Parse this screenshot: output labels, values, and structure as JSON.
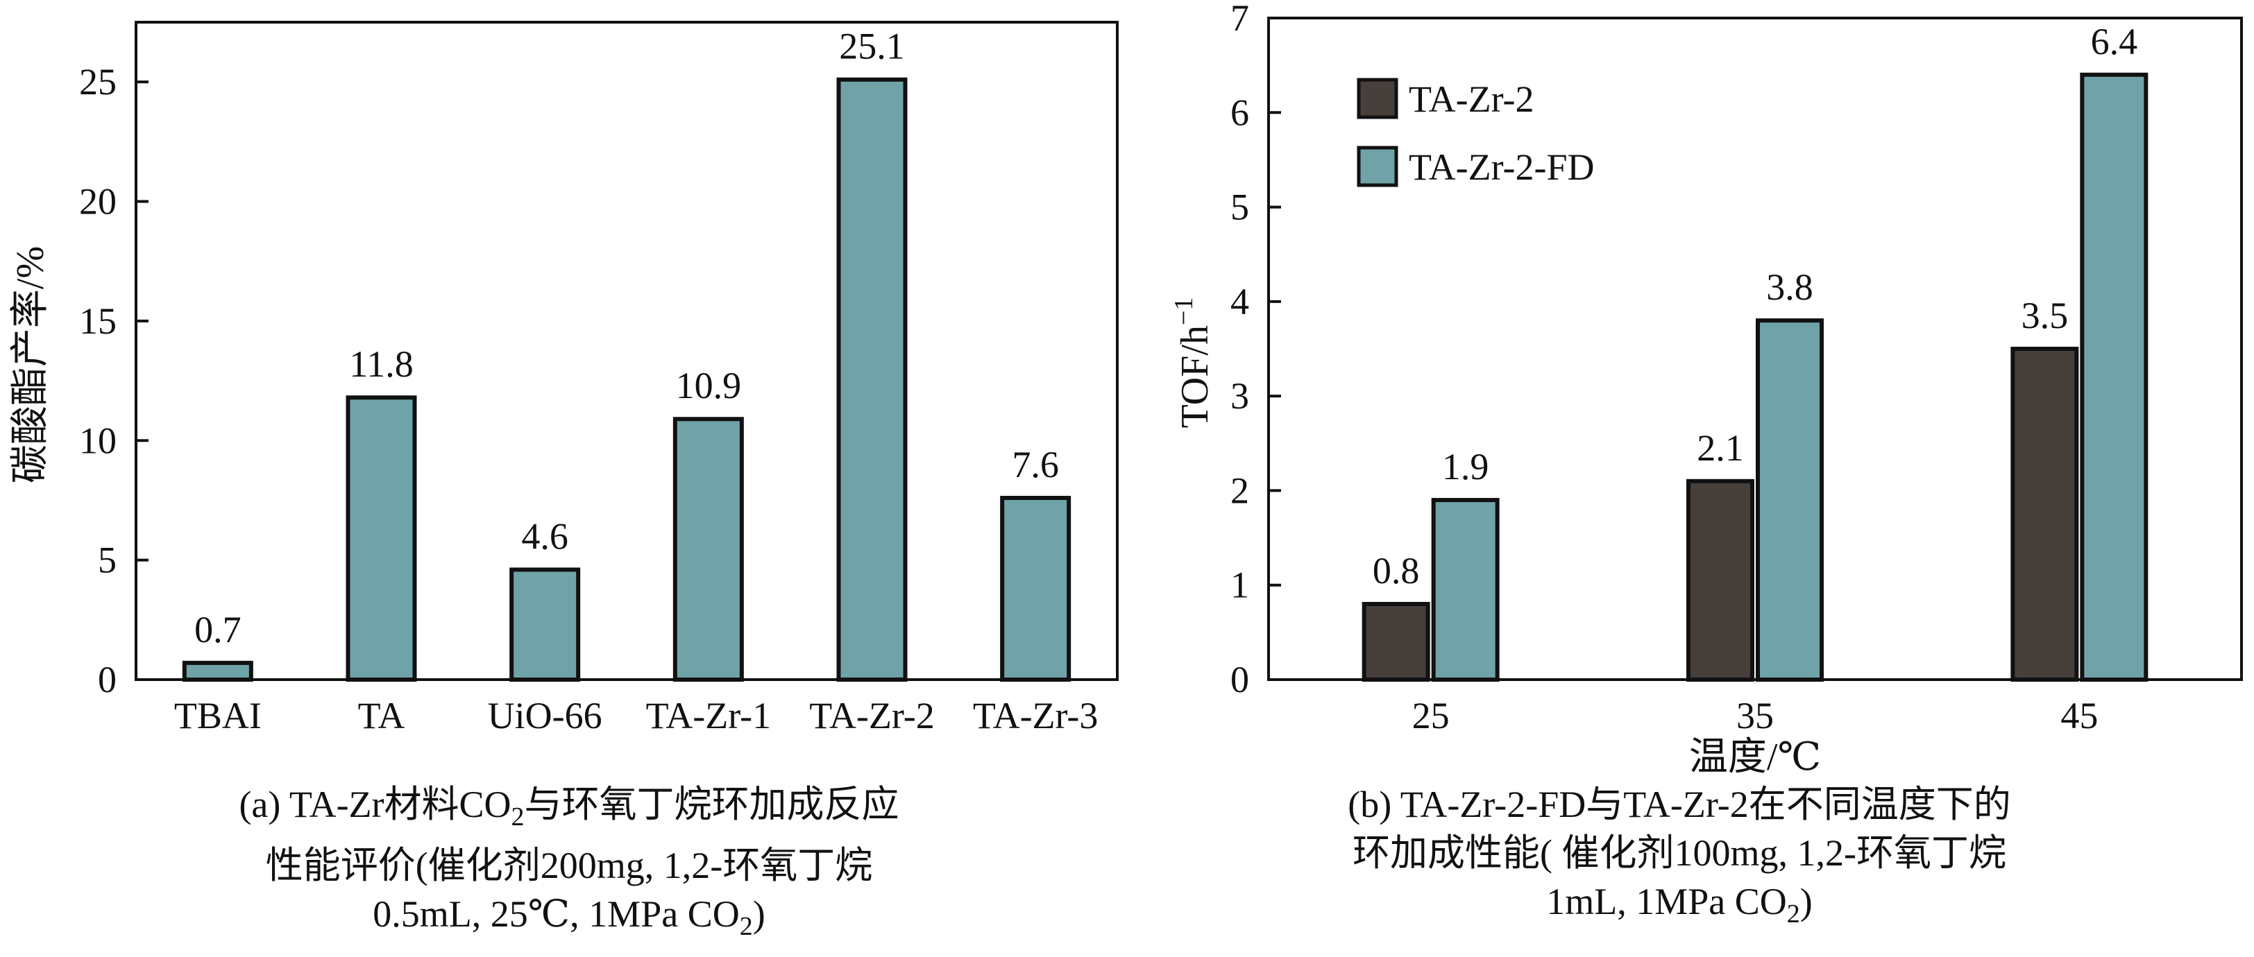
{
  "chart_data": [
    {
      "type": "bar",
      "categories": [
        "TBAI",
        "TA",
        "UiO-66",
        "TA-Zr-1",
        "TA-Zr-2",
        "TA-Zr-3"
      ],
      "values": [
        0.7,
        11.8,
        4.6,
        10.9,
        25.1,
        7.6
      ],
      "data_labels": [
        "0.7",
        "11.8",
        "4.6",
        "10.9",
        "25.1",
        "7.6"
      ],
      "ylabel": "碳酸酯产率/%",
      "xlabel": "",
      "ylim": [
        0,
        27.5
      ],
      "yticks": [
        "0",
        "5",
        "10",
        "15",
        "20",
        "25"
      ],
      "bar_color": "#70a3a8",
      "caption": {
        "line1_pre": "(a) TA-Zr材料CO",
        "line1_sub": "2",
        "line1_post": "与环氧丁烷环加成反应",
        "line2": "性能评价(催化剂200mg, 1,2-环氧丁烷",
        "line3_pre": "0.5mL, 25℃, 1MPa CO",
        "line3_sub": "2",
        "line3_post": ")"
      }
    },
    {
      "type": "bar",
      "categories": [
        "25",
        "35",
        "45"
      ],
      "series": [
        {
          "name": "TA-Zr-2",
          "values": [
            0.8,
            2.1,
            3.5
          ],
          "data_labels": [
            "0.8",
            "2.1",
            "3.5"
          ],
          "color": "#463f3b"
        },
        {
          "name": "TA-Zr-2-FD",
          "values": [
            1.9,
            3.8,
            6.4
          ],
          "data_labels": [
            "1.9",
            "3.8",
            "6.4"
          ],
          "color": "#70a3a8"
        }
      ],
      "xlabel": "温度/℃",
      "ylabel": "TOF/h",
      "ylabel_sup": "−1",
      "ylim": [
        0,
        7
      ],
      "yticks": [
        "0",
        "1",
        "2",
        "3",
        "4",
        "5",
        "6",
        "7"
      ],
      "legend_position": "top-left",
      "caption": {
        "line1": "(b) TA-Zr-2-FD与TA-Zr-2在不同温度下的",
        "line2": "环加成性能( 催化剂100mg, 1,2-环氧丁烷",
        "line3_pre": "1mL, 1MPa CO",
        "line3_sub": "2",
        "line3_post": ")"
      }
    }
  ]
}
